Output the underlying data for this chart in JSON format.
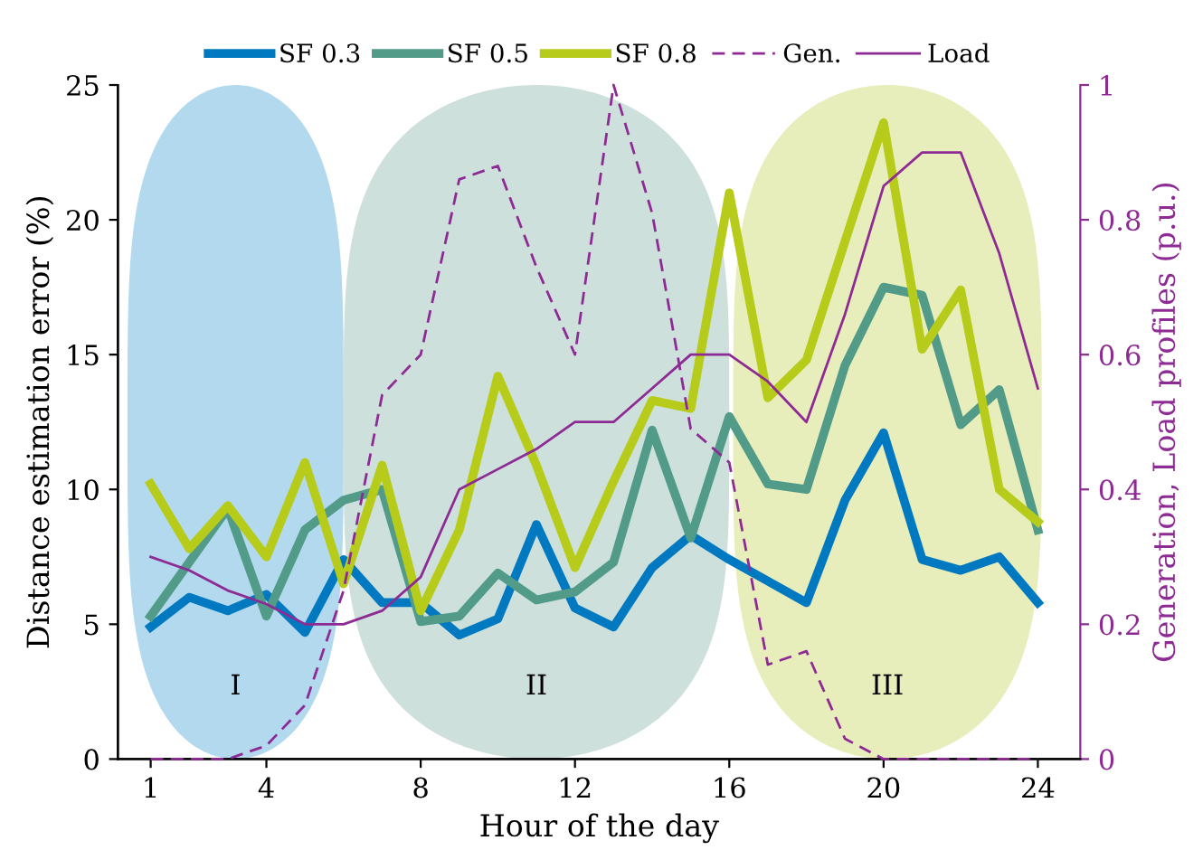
{
  "chart_data": {
    "type": "line",
    "xlabel": "Hour of the day",
    "ylabel": "Distance estimation error (%)",
    "y2label": "Generation, Load profiles (p.u.)",
    "x": [
      1,
      2,
      3,
      4,
      5,
      6,
      7,
      8,
      9,
      10,
      11,
      12,
      13,
      14,
      15,
      16,
      17,
      18,
      19,
      20,
      21,
      22,
      23,
      24
    ],
    "series": [
      {
        "name": "SF 0.3",
        "color": "#0079c1",
        "values": [
          4.9,
          6.0,
          5.5,
          6.1,
          4.7,
          7.4,
          5.8,
          5.8,
          4.6,
          5.2,
          8.7,
          5.6,
          4.9,
          7.1,
          8.3,
          7.4,
          6.6,
          5.8,
          9.6,
          12.1,
          7.4,
          7.0,
          7.5,
          5.8
        ]
      },
      {
        "name": "SF 0.5",
        "color": "#519b88",
        "values": [
          5.3,
          7.3,
          9.3,
          5.3,
          8.5,
          9.6,
          10.0,
          5.1,
          5.3,
          6.9,
          5.9,
          6.2,
          7.3,
          12.2,
          8.2,
          12.7,
          10.2,
          10.0,
          14.6,
          17.5,
          17.2,
          12.4,
          13.7,
          8.5
        ]
      },
      {
        "name": "SF 0.8",
        "color": "#b7cc1a",
        "values": [
          10.2,
          7.8,
          9.4,
          7.5,
          11.0,
          6.5,
          10.9,
          5.5,
          8.5,
          14.2,
          10.9,
          7.1,
          10.3,
          13.3,
          13.0,
          21.0,
          13.4,
          14.8,
          19.2,
          23.6,
          15.2,
          17.4,
          10.0,
          8.8
        ]
      },
      {
        "name": "Gen.",
        "color": "#8e2a94",
        "axis": "y2",
        "line_style": "dashed",
        "values": [
          0,
          0,
          0,
          0.02,
          0.08,
          0.25,
          0.54,
          0.6,
          0.86,
          0.88,
          0.73,
          0.6,
          1.0,
          0.81,
          0.49,
          0.44,
          0.14,
          0.16,
          0.03,
          0,
          0,
          0,
          0,
          0
        ]
      },
      {
        "name": "Load",
        "color": "#8e2a94",
        "axis": "y2",
        "line_style": "solid",
        "values": [
          0.3,
          0.28,
          0.25,
          0.23,
          0.2,
          0.2,
          0.22,
          0.27,
          0.4,
          0.43,
          0.46,
          0.5,
          0.5,
          0.55,
          0.6,
          0.6,
          0.56,
          0.5,
          0.66,
          0.85,
          0.9,
          0.9,
          0.75,
          0.55
        ]
      }
    ],
    "bands": [
      {
        "axis": "x",
        "from": 0.4,
        "to": 6.0,
        "label": "I",
        "color": "#b3d9ee"
      },
      {
        "axis": "x",
        "from": 6.0,
        "to": 16.0,
        "label": "II",
        "color": "#cde0dc"
      },
      {
        "axis": "x",
        "from": 16.1,
        "to": 24.1,
        "label": "III",
        "color": "#e8eebb"
      }
    ],
    "xlim": [
      0.15,
      25.1
    ],
    "xticks": [
      1,
      4,
      8,
      12,
      16,
      20,
      24
    ],
    "ylim": [
      0,
      25
    ],
    "yticks": [
      0,
      5,
      10,
      15,
      20,
      25
    ],
    "y2lim": [
      0,
      1
    ],
    "y2ticks": [
      0,
      0.2,
      0.4,
      0.6,
      0.8,
      1
    ],
    "legend": "top",
    "grid": false,
    "marker": "none"
  }
}
